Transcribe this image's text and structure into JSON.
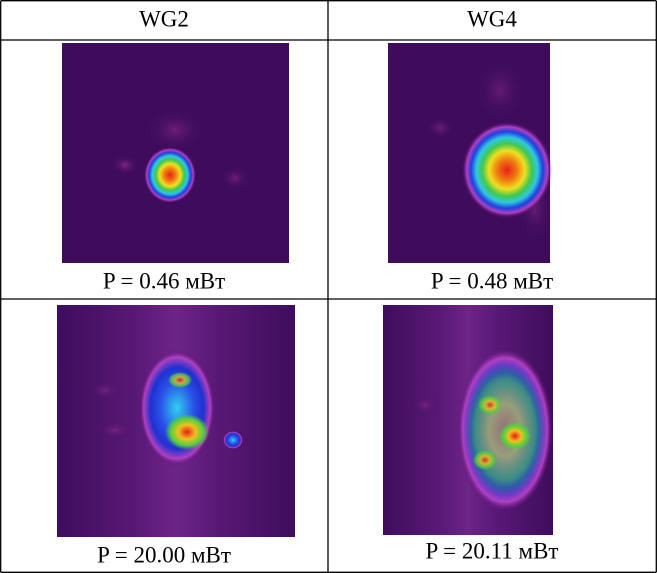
{
  "table": {
    "header": [
      "WG2",
      "WG4"
    ],
    "rows": [
      [
        "P = 0.46 мВт",
        "P = 0.48 мВт"
      ],
      [
        "P = 20.00 мВт",
        "P = 20.11 мВт"
      ]
    ]
  }
}
